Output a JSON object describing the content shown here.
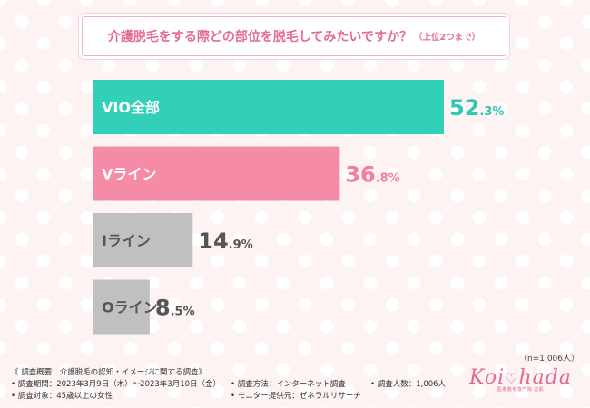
{
  "title": {
    "main": "介護脱毛をする際どの部位を脱毛してみたいですか？",
    "sub": "（上位2つまで）"
  },
  "chart_data": {
    "type": "bar",
    "orientation": "horizontal",
    "title": "介護脱毛をする際どの部位を脱毛してみたいですか？（上位2つまで）",
    "categories": [
      "VIO全部",
      "Vライン",
      "Iライン",
      "Oライン"
    ],
    "values": [
      52.3,
      36.8,
      14.9,
      8.5
    ],
    "unit": "%",
    "colors": [
      "#32d1b7",
      "#f58ba6",
      "#c0c0c0",
      "#c0c0c0"
    ],
    "value_colors": [
      "#2cc8b0",
      "#f07f9f",
      "#555555",
      "#555555"
    ],
    "xlim": [
      0,
      100
    ]
  },
  "note": "（n=1,006人）",
  "footer": {
    "survey_name": "《 調査概要：介護脱毛の認知・イメージに関する調査》",
    "period": "• 調査期間：2023年3月9日（木）〜2023年3月10日（金）",
    "method": "• 調査方法：インターネット調査",
    "count": "• 調査人数：1,006人",
    "target": "• 調査対象：45歳以上の女性",
    "provider": "• モニター提供元：ゼネラルリサーチ"
  },
  "logo": {
    "left": "Koi",
    "right": "hada",
    "tagline": "医療脱毛専門院 恋肌"
  }
}
